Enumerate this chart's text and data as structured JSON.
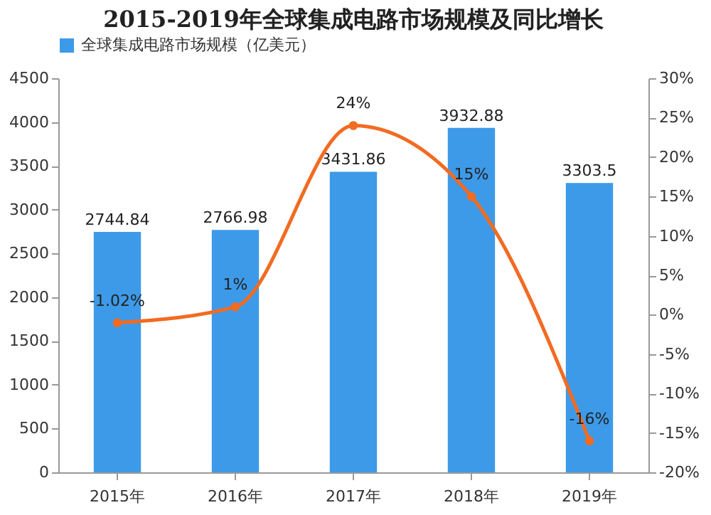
{
  "chart_data": {
    "type": "bar",
    "title": "2015-2019年全球集成电路市场规模及同比增长",
    "categories": [
      "2015年",
      "2016年",
      "2017年",
      "2018年",
      "2019年"
    ],
    "series": [
      {
        "name": "全球集成电路市场规模（亿美元）",
        "color": "#3d9ae8",
        "values": [
          2744.84,
          2766.98,
          3431.86,
          3932.88,
          3303.5
        ],
        "value_labels": [
          "2744.84",
          "2766.98",
          "3431.86",
          "3932.88",
          "3303.5"
        ]
      },
      {
        "type": "line",
        "axis": "y2",
        "color": "#f26b22",
        "values": [
          -1.02,
          1,
          24,
          15,
          -16
        ],
        "value_labels": [
          "-1.02%",
          "1%",
          "24%",
          "15%",
          "-16%"
        ]
      }
    ],
    "ylim": [
      0,
      4500
    ],
    "yticks": [
      0,
      500,
      1000,
      1500,
      2000,
      2500,
      3000,
      3500,
      4000,
      4500
    ],
    "y2lim": [
      -20,
      30
    ],
    "y2ticks": [
      {
        "value": -20,
        "label": "-20%"
      },
      {
        "value": -15,
        "label": "-15%"
      },
      {
        "value": -10,
        "label": "-10%"
      },
      {
        "value": -5,
        "label": "-5%"
      },
      {
        "value": 0,
        "label": "0%"
      },
      {
        "value": 5,
        "label": "5%"
      },
      {
        "value": 10,
        "label": "10%"
      },
      {
        "value": 15,
        "label": "15%"
      },
      {
        "value": 20,
        "label": "20%"
      },
      {
        "value": 25,
        "label": "25%"
      },
      {
        "value": 30,
        "label": "30%"
      }
    ],
    "legend": "top",
    "marker": "circle",
    "line_style": "solid"
  }
}
